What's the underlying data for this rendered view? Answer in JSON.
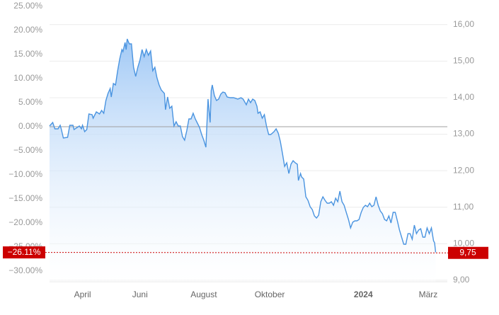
{
  "chart_data": {
    "type": "area",
    "color": "#4a94e0",
    "x": [
      0,
      3,
      5,
      8,
      10,
      11,
      13,
      17,
      19,
      22,
      23,
      26,
      28,
      30,
      31,
      33,
      35,
      37,
      40,
      41,
      44,
      47,
      49,
      51,
      53,
      55,
      57,
      58,
      60,
      62,
      64,
      66,
      68,
      69,
      71,
      72,
      73,
      75,
      77,
      79,
      81,
      83,
      85,
      87,
      89,
      91,
      93,
      95,
      97,
      99,
      101,
      103,
      105,
      108,
      109,
      111,
      113,
      115,
      117,
      119,
      121,
      123,
      125,
      127,
      129,
      131,
      133,
      135,
      137,
      139,
      141,
      143,
      145,
      147,
      149,
      151,
      152,
      153,
      155,
      157,
      159,
      161,
      163,
      165,
      167,
      170,
      173,
      177,
      180,
      182,
      185,
      187,
      189,
      191,
      193,
      195,
      196,
      198,
      200,
      202,
      204,
      206,
      208,
      211,
      213,
      215,
      217,
      219,
      221,
      223,
      225,
      227,
      229,
      231,
      233,
      234,
      236,
      237,
      239,
      241,
      243,
      245,
      247,
      249,
      251,
      253,
      255,
      257,
      259,
      261,
      263,
      265,
      267,
      269,
      271,
      273,
      275,
      277,
      279,
      281,
      283,
      285,
      287,
      289,
      291,
      293,
      295,
      297,
      299,
      301,
      303,
      305,
      307,
      309,
      311,
      313,
      315,
      317,
      319,
      321,
      323,
      325,
      327,
      329,
      331,
      333,
      335,
      337,
      339,
      341,
      343,
      345,
      347,
      349,
      351,
      353,
      355,
      357,
      359,
      361,
      362,
      363
    ],
    "values": [
      0.15,
      0.88,
      -0.44,
      -0.44,
      0.29,
      -0.44,
      -2.35,
      -2.21,
      0.29,
      0.29,
      -0.59,
      -0.15,
      0.15,
      -0.44,
      0.29,
      -1.03,
      -0.59,
      2.65,
      2.5,
      1.76,
      3.09,
      2.65,
      3.38,
      2.79,
      5.44,
      6.91,
      7.94,
      6.18,
      8.97,
      8.68,
      11.62,
      14.12,
      16.03,
      15.59,
      17.5,
      16.03,
      18.24,
      17.21,
      17.21,
      12.35,
      10.44,
      12.35,
      13.82,
      16.03,
      14.56,
      16.03,
      14.85,
      15.74,
      11.62,
      12.35,
      10.15,
      8.68,
      7.65,
      6.91,
      3.53,
      6.18,
      3.82,
      4.26,
      0.15,
      1.03,
      0.15,
      0.15,
      -2.06,
      -2.79,
      -0.88,
      1.62,
      1.62,
      2.79,
      1.62,
      0.74,
      -0.15,
      -1.62,
      -2.79,
      -4.26,
      5.74,
      0.88,
      7.5,
      8.68,
      6.47,
      5.44,
      5.74,
      6.76,
      7.21,
      7.06,
      6.18,
      6.03,
      6.03,
      5.74,
      6.03,
      5.74,
      4.56,
      5.74,
      5.0,
      5.74,
      5.44,
      4.26,
      2.79,
      3.09,
      1.76,
      2.5,
      0.15,
      -1.62,
      -1.62,
      -1.03,
      -0.44,
      -1.32,
      -3.09,
      -5.59,
      -8.24,
      -7.5,
      -9.71,
      -7.79,
      -7.06,
      -7.5,
      -7.79,
      -11.18,
      -9.71,
      -10.44,
      -10.88,
      -14.56,
      -15.29,
      -16.62,
      -17.21,
      -18.53,
      -18.97,
      -18.38,
      -15.59,
      -14.56,
      -15.29,
      -15.88,
      -15.88,
      -15.59,
      -16.32,
      -14.85,
      -15.59,
      -13.38,
      -15.59,
      -16.32,
      -17.79,
      -19.26,
      -21.03,
      -19.85,
      -19.56,
      -19.56,
      -19.26,
      -17.79,
      -16.76,
      -16.32,
      -16.62,
      -15.88,
      -16.62,
      -16.32,
      -14.56,
      -16.32,
      -17.5,
      -18.09,
      -19.26,
      -19.56,
      -18.53,
      -20.0,
      -17.79,
      -17.79,
      -19.56,
      -21.47,
      -22.94,
      -24.41,
      -24.41,
      -22.21,
      -22.21,
      -23.38,
      -20.44,
      -22.21,
      -21.47,
      -21.18,
      -22.94,
      -22.94,
      -21.03,
      -22.21,
      -21.03,
      -23.68,
      -24.12,
      -26.11
    ],
    "xlim": [
      0,
      374
    ],
    "xticks": [
      {
        "value": 31,
        "label": "April"
      },
      {
        "value": 85,
        "label": "Juni"
      },
      {
        "value": 145,
        "label": "August"
      },
      {
        "value": 207,
        "label": "Oktober"
      },
      {
        "value": 295,
        "label": "2024",
        "bold": true
      },
      {
        "value": 356,
        "label": "März"
      }
    ],
    "ylim": [
      -32.2,
      25
    ],
    "yticks": [
      {
        "value": 25,
        "label": "25.00%"
      },
      {
        "value": 20,
        "label": "20.00%"
      },
      {
        "value": 15,
        "label": "15.00%"
      },
      {
        "value": 10,
        "label": "10.00%"
      },
      {
        "value": 5,
        "label": "5.00%"
      },
      {
        "value": 0,
        "label": "0.00%"
      },
      {
        "value": -5,
        "label": "−5.00%"
      },
      {
        "value": -10,
        "label": "−10.00%"
      },
      {
        "value": -15,
        "label": "−15.00%"
      },
      {
        "value": -20,
        "label": "−20.00%"
      },
      {
        "value": -25,
        "label": "−25.00%"
      },
      {
        "value": -30,
        "label": "−30.00%"
      }
    ],
    "y2lim": [
      8.96,
      16.5
    ],
    "y2ticks": [
      {
        "value": 16,
        "label": "16,00"
      },
      {
        "value": 15,
        "label": "15,00"
      },
      {
        "value": 14,
        "label": "14,00"
      },
      {
        "value": 13,
        "label": "13,00"
      },
      {
        "value": 12,
        "label": "12,00"
      },
      {
        "value": 11,
        "label": "11,00"
      },
      {
        "value": 10,
        "label": "10,00"
      },
      {
        "value": 9,
        "label": "9,00"
      }
    ],
    "grid": true,
    "current": {
      "value": -26.11,
      "label": "−26.11%"
    },
    "current_y2": {
      "value": 9.75,
      "label": "9,75"
    },
    "marker_color": "#cc0000"
  }
}
